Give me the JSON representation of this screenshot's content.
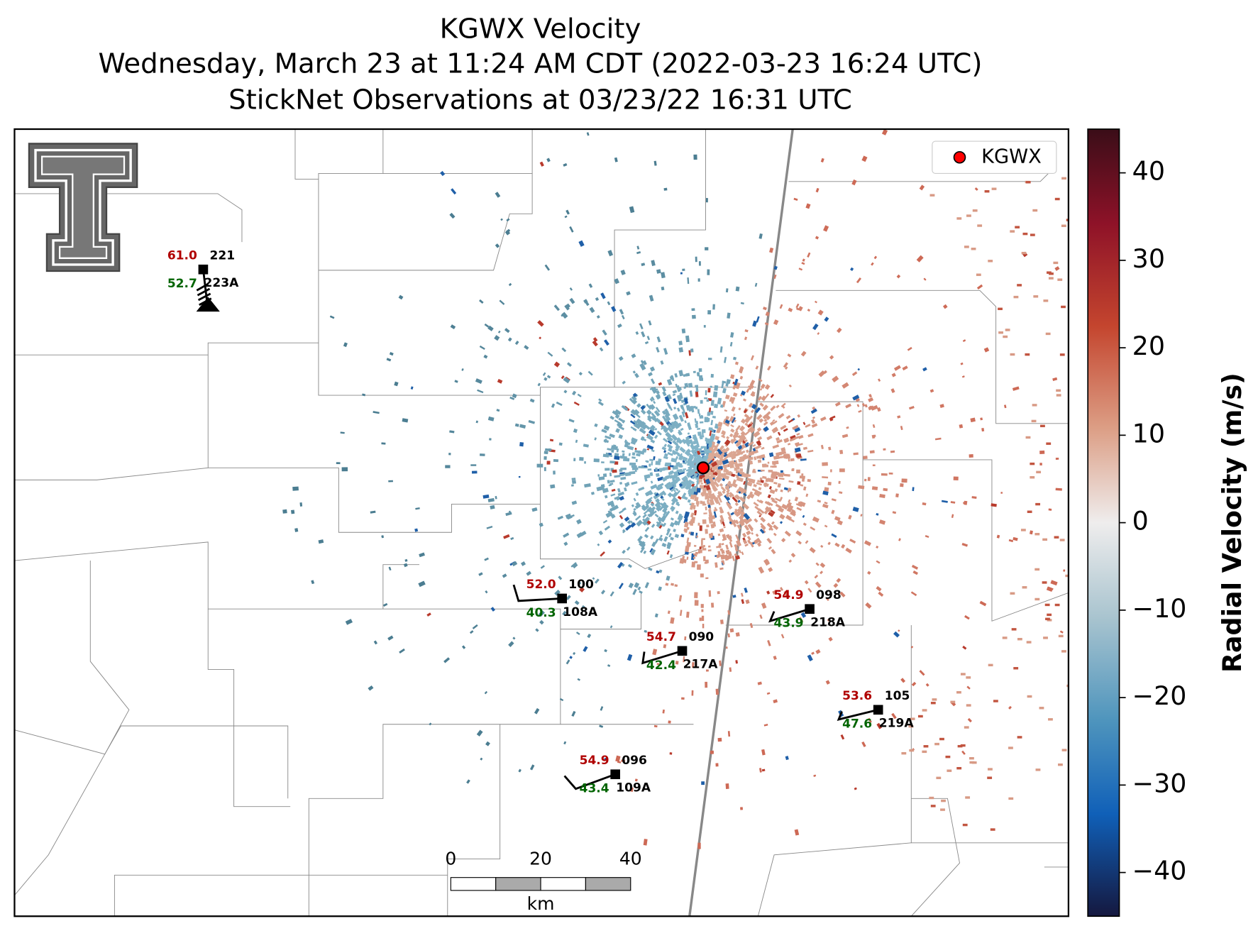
{
  "title": [
    "KGWX Velocity",
    "Wednesday, March 23 at 11:24 AM CDT (2022-03-23 16:24 UTC)",
    "StickNet Observations at 03/23/22 16:31 UTC"
  ],
  "legend": {
    "label": "KGWX",
    "color": "#ff0000"
  },
  "colorbar": {
    "label": "Radial Velocity (m/s)",
    "lim": [
      -45,
      45
    ],
    "ticks": [
      {
        "value": -40,
        "label": "−40"
      },
      {
        "value": -30,
        "label": "−30"
      },
      {
        "value": -20,
        "label": "−20"
      },
      {
        "value": -10,
        "label": "−10"
      },
      0,
      10,
      20,
      30,
      40
    ]
  },
  "scale_bar": {
    "ticks": [
      0,
      20,
      40
    ],
    "unit": "km"
  },
  "stations": [
    {
      "temperature": "61.0",
      "pressure": "221",
      "dewpoint": "52.7",
      "id": "223A"
    },
    {
      "temperature": "52.0",
      "pressure": "100",
      "dewpoint": "40.3",
      "id": "108A"
    },
    {
      "temperature": "54.7",
      "pressure": "090",
      "dewpoint": "42.4",
      "id": "217A"
    },
    {
      "temperature": "54.9",
      "pressure": "098",
      "dewpoint": "43.9",
      "id": "218A"
    },
    {
      "temperature": "53.6",
      "pressure": "105",
      "dewpoint": "47.6",
      "id": "219A"
    },
    {
      "temperature": "54.9",
      "pressure": "096",
      "dewpoint": "43.4",
      "id": "109A"
    }
  ]
}
